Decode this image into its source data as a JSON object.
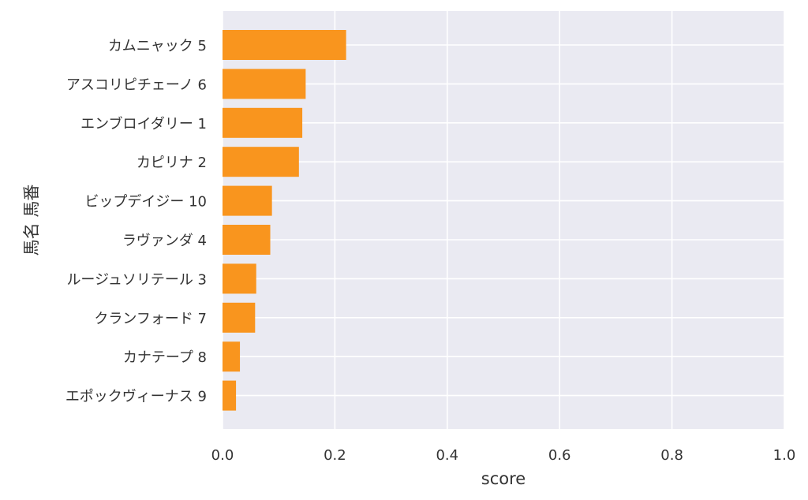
{
  "chart_data": {
    "type": "bar",
    "orientation": "horizontal",
    "categories": [
      "カムニャック 5",
      "アスコリピチェーノ 6",
      "エンブロイダリー 1",
      "カピリナ 2",
      "ビップデイジー 10",
      "ラヴァンダ 4",
      "ルージュソリテール 3",
      "クランフォード 7",
      "カナテープ 8",
      "エポックヴィーナス 9"
    ],
    "values": [
      0.22,
      0.148,
      0.142,
      0.136,
      0.088,
      0.085,
      0.06,
      0.058,
      0.031,
      0.024
    ],
    "xlabel": "score",
    "ylabel": "馬名 馬番",
    "xlim": [
      0,
      1.0
    ],
    "x_ticks": [
      "0.0",
      "0.2",
      "0.4",
      "0.6",
      "0.8",
      "1.0"
    ],
    "grid": true,
    "bar_color": "#f9951e",
    "plot_background": "#eaeaf2",
    "grid_color": "#ffffff"
  }
}
